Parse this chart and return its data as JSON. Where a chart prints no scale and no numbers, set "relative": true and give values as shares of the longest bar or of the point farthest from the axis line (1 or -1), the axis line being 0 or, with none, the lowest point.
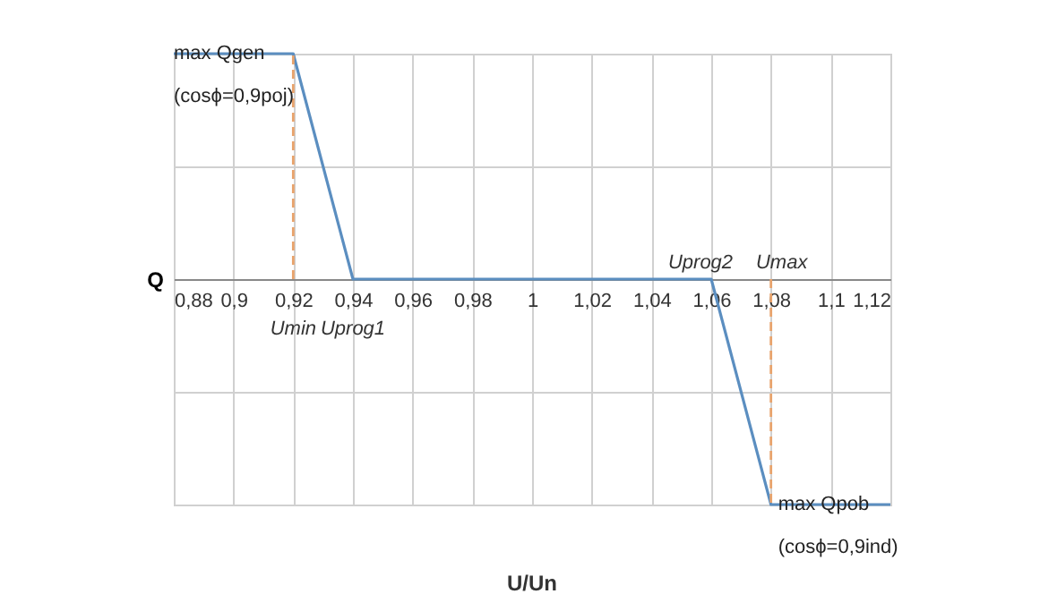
{
  "chart_data": {
    "type": "line",
    "xlabel": "U/Un",
    "ylabel": "Q",
    "relative": true,
    "grid": true,
    "x": [
      0.88,
      0.92,
      0.94,
      1.06,
      1.08,
      1.12
    ],
    "series": [
      {
        "color": "#5b8ec0",
        "values": [
          1,
          1,
          0,
          0,
          -1,
          -1
        ]
      }
    ],
    "xlim": [
      0.88,
      1.12
    ],
    "xticks": [
      {
        "value": 0.88,
        "label": "0,88"
      },
      {
        "value": 0.9,
        "label": "0,9"
      },
      {
        "value": 0.92,
        "label": "0,92"
      },
      {
        "value": 0.94,
        "label": "0,94"
      },
      {
        "value": 0.96,
        "label": "0,96"
      },
      {
        "value": 0.98,
        "label": "0,98"
      },
      {
        "value": 1,
        "label": "1"
      },
      {
        "value": 1.02,
        "label": "1,02"
      },
      {
        "value": 1.04,
        "label": "1,04"
      },
      {
        "value": 1.06,
        "label": "1,06"
      },
      {
        "value": 1.08,
        "label": "1,08"
      },
      {
        "value": 1.1,
        "label": "1,1"
      },
      {
        "value": 1.12,
        "label": "1,12"
      }
    ],
    "ref_lines": [
      {
        "axis": "x",
        "value": 0.92,
        "label": "Umin",
        "color": "#e8a36c",
        "line_style": "dashed"
      },
      {
        "axis": "x",
        "value": 1.08,
        "label": "Umax",
        "color": "#e8a36c",
        "line_style": "dashed"
      }
    ],
    "annotations": [
      {
        "text": "max Qgen\n(cosϕ=0,9poj)",
        "x": 0.88,
        "y": 1
      },
      {
        "text": "max Qpob\n(cosϕ=0,9ind)",
        "x": 1.08,
        "y": -1
      },
      {
        "text": "Uprog1",
        "x": 0.94,
        "y": 0
      },
      {
        "text": "Uprog2",
        "x": 1.06,
        "y": 0
      }
    ]
  }
}
